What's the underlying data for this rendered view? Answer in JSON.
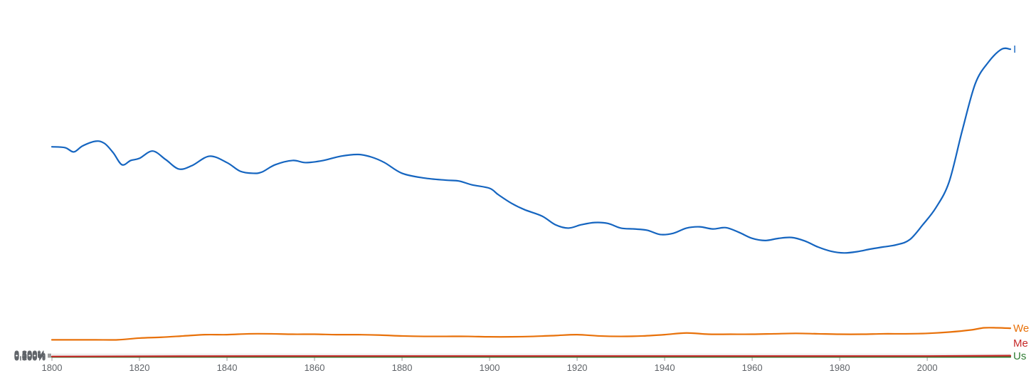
{
  "chart_data": {
    "type": "line",
    "title": "",
    "xlabel": "",
    "ylabel": "",
    "xlim": [
      1800,
      2019
    ],
    "ylim": [
      0,
      0.8
    ],
    "grid": true,
    "legend": "inline-right",
    "x_ticks": [
      "1800",
      "1820",
      "1840",
      "1860",
      "1880",
      "1900",
      "1920",
      "1940",
      "1960",
      "1980",
      "2000"
    ],
    "y_ticks": [
      "0.000%",
      "0.100%",
      "0.200%",
      "0.300%",
      "0.400%",
      "0.500%",
      "0.600%",
      "0.700%",
      "0.800%"
    ],
    "series": [
      {
        "name": "I",
        "color": "#1565c0",
        "x": [
          1800,
          1803,
          1805,
          1807,
          1810,
          1812,
          1814,
          1816,
          1818,
          1820,
          1823,
          1826,
          1829,
          1832,
          1836,
          1840,
          1843,
          1846,
          1848,
          1851,
          1855,
          1858,
          1862,
          1866,
          1870,
          1873,
          1876,
          1880,
          1885,
          1890,
          1893,
          1896,
          1900,
          1902,
          1905,
          1908,
          1912,
          1915,
          1918,
          1921,
          1924,
          1927,
          1930,
          1933,
          1936,
          1939,
          1942,
          1945,
          1948,
          1951,
          1954,
          1957,
          1960,
          1963,
          1966,
          1969,
          1972,
          1975,
          1978,
          1981,
          1984,
          1987,
          1990,
          1993,
          1996,
          1999,
          2002,
          2005,
          2008,
          2011,
          2014,
          2017,
          2019
        ],
        "y": [
          0.492,
          0.49,
          0.48,
          0.494,
          0.505,
          0.5,
          0.478,
          0.45,
          0.46,
          0.465,
          0.482,
          0.462,
          0.44,
          0.448,
          0.47,
          0.455,
          0.435,
          0.43,
          0.433,
          0.45,
          0.46,
          0.455,
          0.46,
          0.47,
          0.474,
          0.468,
          0.455,
          0.43,
          0.419,
          0.414,
          0.412,
          0.403,
          0.395,
          0.38,
          0.36,
          0.345,
          0.33,
          0.31,
          0.302,
          0.31,
          0.315,
          0.313,
          0.302,
          0.3,
          0.297,
          0.287,
          0.29,
          0.302,
          0.305,
          0.3,
          0.303,
          0.292,
          0.278,
          0.273,
          0.278,
          0.28,
          0.272,
          0.258,
          0.248,
          0.244,
          0.247,
          0.253,
          0.258,
          0.263,
          0.275,
          0.31,
          0.35,
          0.41,
          0.53,
          0.64,
          0.69,
          0.72,
          0.72
        ]
      },
      {
        "name": "We",
        "color": "#e8710a",
        "x": [
          1800,
          1805,
          1810,
          1815,
          1820,
          1825,
          1830,
          1835,
          1840,
          1845,
          1850,
          1855,
          1860,
          1865,
          1870,
          1875,
          1880,
          1885,
          1890,
          1895,
          1900,
          1905,
          1910,
          1915,
          1920,
          1925,
          1930,
          1935,
          1940,
          1945,
          1950,
          1955,
          1960,
          1965,
          1970,
          1975,
          1980,
          1985,
          1990,
          1995,
          2000,
          2005,
          2010,
          2013,
          2016,
          2019
        ],
        "y": [
          0.041,
          0.041,
          0.041,
          0.041,
          0.045,
          0.047,
          0.05,
          0.053,
          0.053,
          0.055,
          0.055,
          0.054,
          0.054,
          0.053,
          0.053,
          0.052,
          0.05,
          0.049,
          0.049,
          0.049,
          0.048,
          0.048,
          0.049,
          0.051,
          0.053,
          0.05,
          0.049,
          0.05,
          0.053,
          0.057,
          0.054,
          0.054,
          0.054,
          0.055,
          0.056,
          0.055,
          0.054,
          0.054,
          0.055,
          0.055,
          0.056,
          0.059,
          0.064,
          0.069,
          0.069,
          0.068
        ]
      },
      {
        "name": "Me",
        "color": "#c62828",
        "x": [
          1800,
          1850,
          1900,
          1950,
          2000,
          2019
        ],
        "y": [
          0.002,
          0.003,
          0.003,
          0.003,
          0.003,
          0.004
        ]
      },
      {
        "name": "Us",
        "color": "#2e7d32",
        "x": [
          1800,
          1850,
          1900,
          1950,
          2000,
          2019
        ],
        "y": [
          0.001,
          0.001,
          0.001,
          0.001,
          0.001,
          0.001
        ]
      }
    ]
  }
}
